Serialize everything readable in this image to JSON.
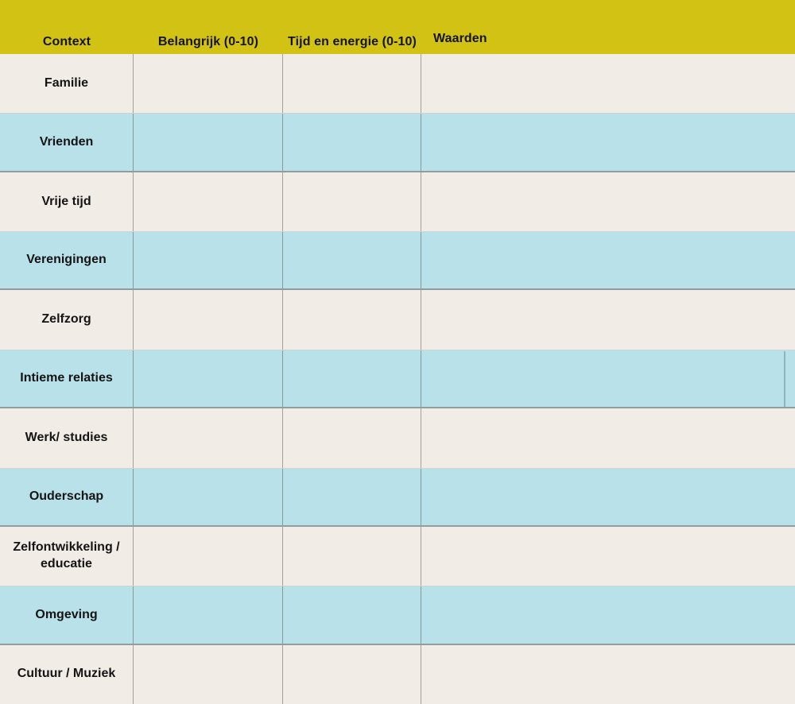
{
  "colors": {
    "header_bg": "#d2c213",
    "row_cream": "#f1ece5",
    "row_blue": "#b9e1e9",
    "text": "#141414",
    "divider": "rgba(45,42,35,0.38)",
    "blue_row_border_top": "#cfd4d2",
    "blue_row_border_bottom": "#929c9e"
  },
  "table": {
    "columns": [
      {
        "label": "Context"
      },
      {
        "label": "Belangrijk (0-10)"
      },
      {
        "label": "Tijd en energie (0-10)"
      },
      {
        "label": "Waarden"
      }
    ],
    "rows": [
      {
        "context": "Familie",
        "belangrijk": "",
        "tijd_en_energie": "",
        "waarden": ""
      },
      {
        "context": "Vrienden",
        "belangrijk": "",
        "tijd_en_energie": "",
        "waarden": ""
      },
      {
        "context": "Vrije tijd",
        "belangrijk": "",
        "tijd_en_energie": "",
        "waarden": ""
      },
      {
        "context": "Verenigingen",
        "belangrijk": "",
        "tijd_en_energie": "",
        "waarden": ""
      },
      {
        "context": "Zelfzorg",
        "belangrijk": "",
        "tijd_en_energie": "",
        "waarden": ""
      },
      {
        "context": "Intieme relaties",
        "belangrijk": "",
        "tijd_en_energie": "",
        "waarden": ""
      },
      {
        "context": "Werk/ studies",
        "belangrijk": "",
        "tijd_en_energie": "",
        "waarden": ""
      },
      {
        "context": "Ouderschap",
        "belangrijk": "",
        "tijd_en_energie": "",
        "waarden": ""
      },
      {
        "context": "Zelfontwikkeling /\neducatie",
        "belangrijk": "",
        "tijd_en_energie": "",
        "waarden": ""
      },
      {
        "context": "Omgeving",
        "belangrijk": "",
        "tijd_en_energie": "",
        "waarden": ""
      },
      {
        "context": "Cultuur / Muziek",
        "belangrijk": "",
        "tijd_en_energie": "",
        "waarden": ""
      }
    ]
  }
}
